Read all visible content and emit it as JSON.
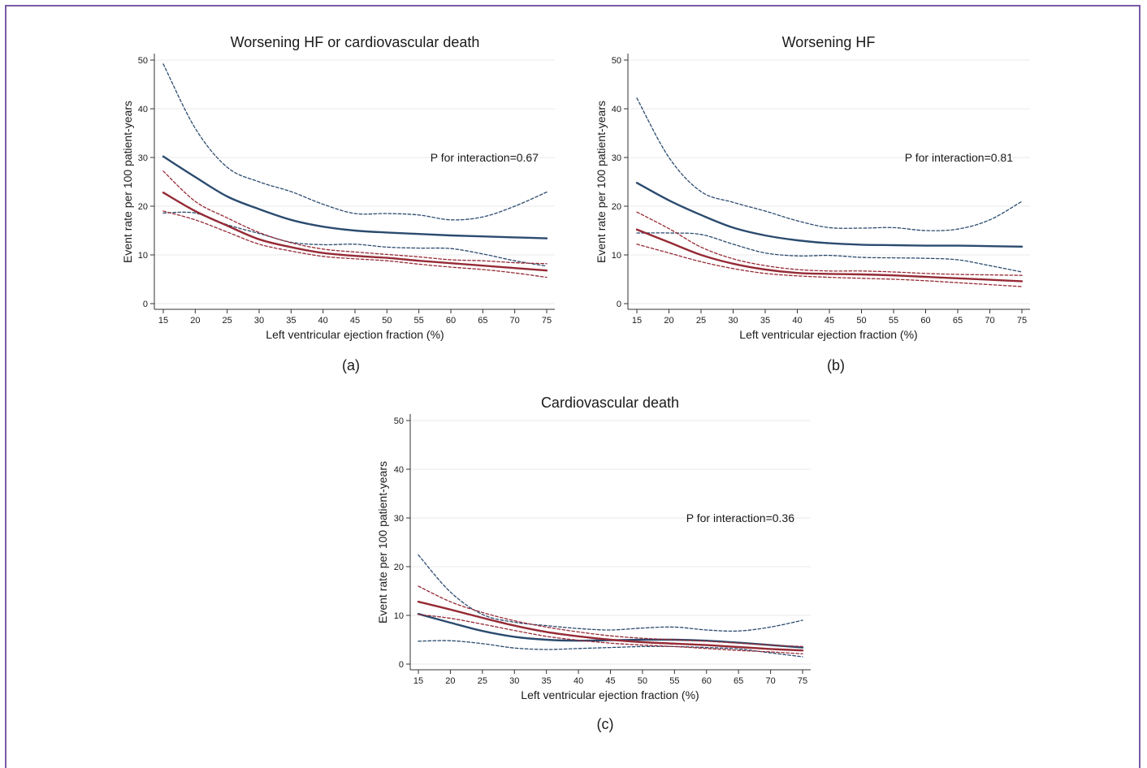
{
  "colors": {
    "treatment": "#2b4b6f",
    "placebo": "#952a35",
    "frame": "#7b5aa6",
    "grid": "#e8e8e8"
  },
  "chart_data": [
    {
      "type": "line",
      "title": "Worsening HF or cardiovascular death",
      "caption": "(a)",
      "xlabel": "Left ventricular ejection fraction (%)",
      "ylabel": "Event rate per 100 patient-years",
      "annotation": "P for interaction=0.67",
      "xlim": [
        15,
        75
      ],
      "ylim": [
        0,
        50
      ],
      "xticks": [
        15,
        20,
        25,
        30,
        35,
        40,
        45,
        50,
        55,
        60,
        65,
        70,
        75
      ],
      "yticks": [
        0,
        10,
        20,
        30,
        40,
        50
      ],
      "grid": true,
      "x": [
        15,
        20,
        25,
        30,
        35,
        40,
        45,
        50,
        55,
        60,
        65,
        70,
        75
      ],
      "series": [
        {
          "color": "#2b4b6f",
          "dash": false,
          "values": [
            30.2,
            26.0,
            22.0,
            19.4,
            17.2,
            15.8,
            15.0,
            14.6,
            14.3,
            14.0,
            13.8,
            13.6,
            13.4
          ]
        },
        {
          "color": "#2b4b6f",
          "dash": true,
          "values": [
            49.2,
            36.0,
            28.0,
            25.0,
            23.0,
            20.4,
            18.5,
            18.5,
            18.2,
            17.2,
            17.8,
            20.0,
            22.9
          ]
        },
        {
          "color": "#2b4b6f",
          "dash": true,
          "values": [
            18.6,
            18.6,
            16.2,
            14.4,
            12.6,
            12.1,
            12.2,
            11.6,
            11.4,
            11.3,
            10.2,
            8.8,
            7.7
          ]
        },
        {
          "color": "#952a35",
          "dash": false,
          "values": [
            22.8,
            19.0,
            16.0,
            13.2,
            11.6,
            10.4,
            9.8,
            9.4,
            8.8,
            8.3,
            7.8,
            7.3,
            6.8
          ]
        },
        {
          "color": "#952a35",
          "dash": true,
          "values": [
            27.2,
            21.0,
            17.6,
            14.6,
            12.5,
            11.2,
            10.6,
            10.1,
            9.6,
            9.0,
            8.8,
            8.4,
            8.2
          ]
        },
        {
          "color": "#952a35",
          "dash": true,
          "values": [
            19.0,
            17.2,
            14.7,
            12.2,
            10.8,
            9.7,
            9.2,
            8.8,
            8.1,
            7.5,
            7.0,
            6.3,
            5.4
          ]
        }
      ]
    },
    {
      "type": "line",
      "title": "Worsening HF",
      "caption": "(b)",
      "xlabel": "Left ventricular ejection fraction (%)",
      "ylabel": "Event rate per 100 patient-years",
      "annotation": "P for interaction=0.81",
      "xlim": [
        15,
        75
      ],
      "ylim": [
        0,
        50
      ],
      "xticks": [
        15,
        20,
        25,
        30,
        35,
        40,
        45,
        50,
        55,
        60,
        65,
        70,
        75
      ],
      "yticks": [
        0,
        10,
        20,
        30,
        40,
        50
      ],
      "grid": true,
      "x": [
        15,
        20,
        25,
        30,
        35,
        40,
        45,
        50,
        55,
        60,
        65,
        70,
        75
      ],
      "series": [
        {
          "color": "#2b4b6f",
          "dash": false,
          "values": [
            24.8,
            21.2,
            18.2,
            15.6,
            14.0,
            13.0,
            12.4,
            12.1,
            12.0,
            11.9,
            11.9,
            11.8,
            11.7
          ]
        },
        {
          "color": "#2b4b6f",
          "dash": true,
          "values": [
            42.2,
            30.0,
            23.0,
            20.8,
            19.0,
            17.0,
            15.6,
            15.5,
            15.6,
            15.0,
            15.3,
            17.2,
            21.0
          ]
        },
        {
          "color": "#2b4b6f",
          "dash": true,
          "values": [
            14.5,
            14.5,
            14.2,
            12.2,
            10.4,
            9.8,
            9.9,
            9.5,
            9.4,
            9.3,
            9.0,
            7.8,
            6.5
          ]
        },
        {
          "color": "#952a35",
          "dash": false,
          "values": [
            15.2,
            12.6,
            10.0,
            8.2,
            7.0,
            6.3,
            6.1,
            6.0,
            5.8,
            5.5,
            5.2,
            4.9,
            4.6
          ]
        },
        {
          "color": "#952a35",
          "dash": true,
          "values": [
            18.8,
            15.4,
            11.6,
            9.2,
            7.8,
            7.0,
            6.7,
            6.7,
            6.5,
            6.2,
            6.0,
            5.9,
            5.8
          ]
        },
        {
          "color": "#952a35",
          "dash": true,
          "values": [
            12.2,
            10.4,
            8.6,
            7.2,
            6.2,
            5.7,
            5.4,
            5.2,
            5.0,
            4.7,
            4.3,
            3.9,
            3.5
          ]
        }
      ]
    },
    {
      "type": "line",
      "title": "Cardiovascular death",
      "caption": "(c)",
      "xlabel": "Left ventricular ejection fraction (%)",
      "ylabel": "Event rate per 100 patient-years",
      "annotation": "P for interaction=0.36",
      "xlim": [
        15,
        75
      ],
      "ylim": [
        0,
        50
      ],
      "xticks": [
        15,
        20,
        25,
        30,
        35,
        40,
        45,
        50,
        55,
        60,
        65,
        70,
        75
      ],
      "yticks": [
        0,
        10,
        20,
        30,
        40,
        50
      ],
      "grid": true,
      "x": [
        15,
        20,
        25,
        30,
        35,
        40,
        45,
        50,
        55,
        60,
        65,
        70,
        75
      ],
      "series": [
        {
          "color": "#2b4b6f",
          "dash": false,
          "values": [
            10.3,
            8.5,
            6.8,
            5.6,
            5.0,
            4.8,
            4.9,
            5.0,
            5.0,
            4.8,
            4.4,
            3.9,
            3.4
          ]
        },
        {
          "color": "#2b4b6f",
          "dash": true,
          "values": [
            22.4,
            14.8,
            10.2,
            8.6,
            7.9,
            7.3,
            7.0,
            7.4,
            7.6,
            7.0,
            6.8,
            7.6,
            9.0
          ]
        },
        {
          "color": "#2b4b6f",
          "dash": true,
          "values": [
            4.7,
            4.8,
            4.2,
            3.3,
            3.0,
            3.2,
            3.4,
            3.6,
            3.6,
            3.4,
            3.1,
            2.3,
            1.5
          ]
        },
        {
          "color": "#952a35",
          "dash": false,
          "values": [
            12.8,
            11.2,
            9.5,
            7.9,
            6.6,
            5.7,
            5.0,
            4.5,
            4.2,
            3.9,
            3.5,
            3.1,
            2.8
          ]
        },
        {
          "color": "#952a35",
          "dash": true,
          "values": [
            16.0,
            12.8,
            10.6,
            8.9,
            7.6,
            6.6,
            5.8,
            5.3,
            5.0,
            4.7,
            4.3,
            3.9,
            3.6
          ]
        },
        {
          "color": "#952a35",
          "dash": true,
          "values": [
            10.2,
            9.4,
            8.2,
            6.9,
            5.7,
            4.9,
            4.3,
            3.9,
            3.6,
            3.2,
            2.8,
            2.5,
            2.1
          ]
        }
      ]
    }
  ]
}
